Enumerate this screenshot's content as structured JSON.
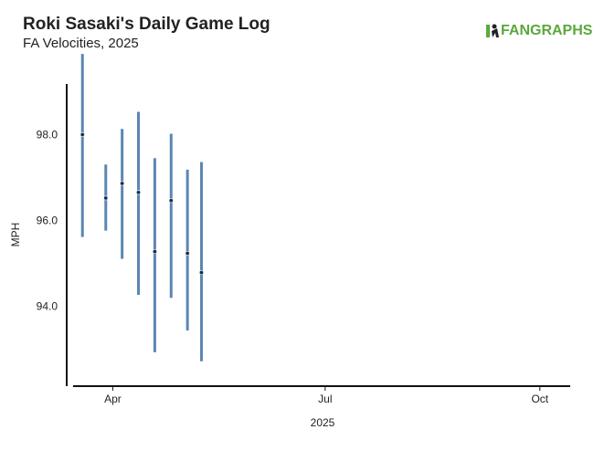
{
  "chart_data": {
    "type": "rangebar",
    "title": "Roki Sasaki's Daily Game Log",
    "subtitle": "FA Velocities, 2025",
    "logo": "FANGRAPHS",
    "x_label": "2025",
    "y_label": "MPH",
    "x": [
      "2025-03-19",
      "2025-03-29",
      "2025-04-05",
      "2025-04-12",
      "2025-04-19",
      "2025-04-26",
      "2025-05-03",
      "2025-05-09"
    ],
    "values": [
      98.02,
      96.54,
      96.88,
      96.67,
      95.29,
      96.48,
      95.25,
      94.8
    ],
    "low": [
      95.63,
      95.78,
      95.12,
      94.28,
      92.94,
      94.21,
      93.45,
      92.73
    ],
    "high": [
      99.9,
      97.32,
      98.15,
      98.55,
      97.47,
      98.04,
      97.2,
      97.38
    ],
    "color": "#5b87b2",
    "point_color": "#1e2b38",
    "xlim": [
      "2025-03-15",
      "2025-10-14"
    ],
    "xticks": [
      {
        "value": "2025-04-01",
        "label": "Apr"
      },
      {
        "value": "2025-07-01",
        "label": "Jul"
      },
      {
        "value": "2025-10-01",
        "label": "Oct"
      }
    ],
    "ylim": [
      92.15,
      99.2
    ],
    "yticks": [
      {
        "value": 94,
        "label": "94.0"
      },
      {
        "value": 96,
        "label": "96.0"
      },
      {
        "value": 98,
        "label": "98.0"
      }
    ]
  }
}
